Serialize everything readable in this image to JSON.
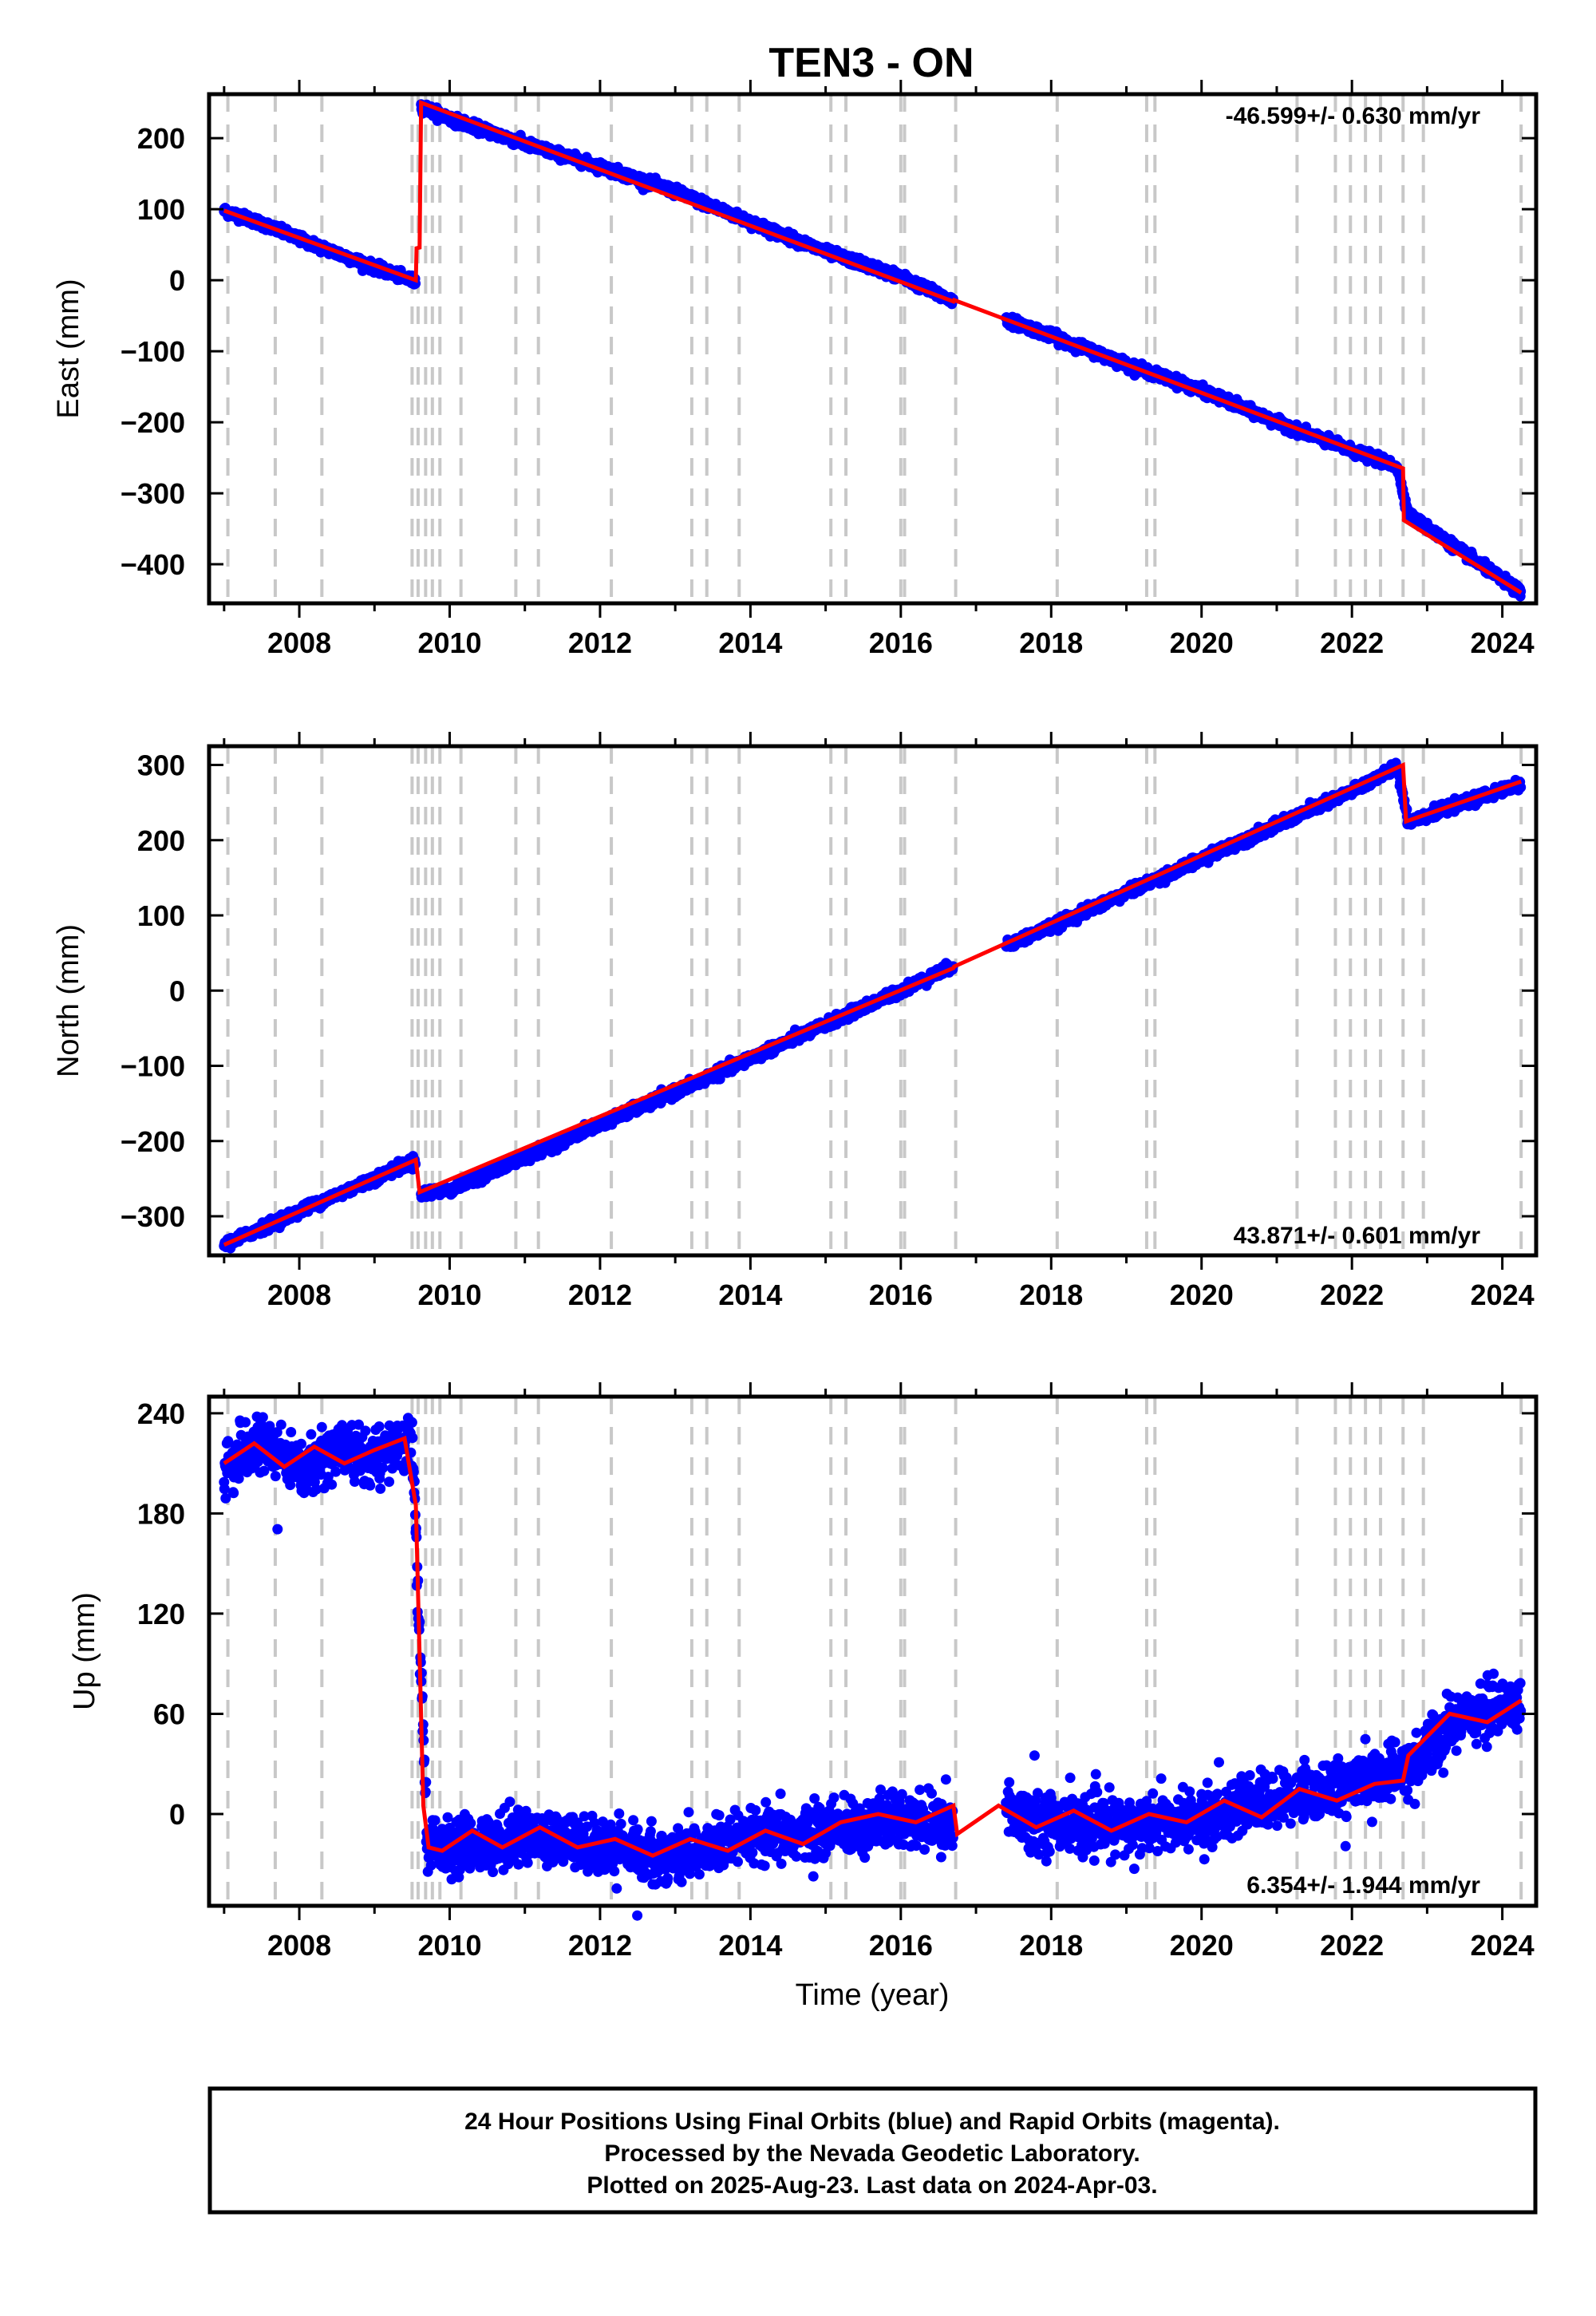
{
  "page": {
    "title": "TEN3 - ON"
  },
  "footer": {
    "line1": "24 Hour Positions Using Final Orbits (blue) and Rapid Orbits (magenta).",
    "line2": "Processed by the Nevada Geodetic Laboratory.",
    "line3": "Plotted on 2025-Aug-23. Last data on 2024-Apr-03."
  },
  "colors": {
    "points": "#0000ff",
    "model": "#ff0000",
    "events": "#c8c8c8",
    "frame": "#000000"
  },
  "chart_data": [
    {
      "type": "scatter",
      "ylabel": "East (mm)",
      "xlabel": "",
      "xlim": [
        2006.8,
        2024.45
      ],
      "ylim": [
        -455,
        262
      ],
      "yticks": [
        200,
        100,
        0,
        -100,
        -200,
        -300,
        -400
      ],
      "xticks": [
        2008,
        2010,
        2012,
        2014,
        2016,
        2018,
        2020,
        2022,
        2024
      ],
      "rate_label": "-46.599+/- 0.630 mm/yr",
      "rate_position": "top-right",
      "event_years": [
        2007.05,
        2007.68,
        2008.3,
        2009.5,
        2009.58,
        2009.68,
        2009.77,
        2009.87,
        2010.15,
        2010.88,
        2011.18,
        2012.15,
        2013.22,
        2013.42,
        2013.85,
        2015.07,
        2015.27,
        2016.0,
        2016.05,
        2016.73,
        2018.08,
        2019.27,
        2019.38,
        2021.27,
        2021.78,
        2021.98,
        2022.18,
        2022.38,
        2022.68,
        2022.95,
        2024.25
      ],
      "series": [
        {
          "name": "Final Orbits",
          "kind": "points",
          "x": [
            2007.0,
            2007.5,
            2008.0,
            2008.5,
            2009.0,
            2009.55,
            2009.62,
            2010.0,
            2011.0,
            2012.0,
            2013.0,
            2014.0,
            2015.0,
            2016.0,
            2016.7,
            2017.4,
            2018.0,
            2019.0,
            2020.0,
            2021.0,
            2022.0,
            2022.6,
            2022.75,
            2023.5,
            2024.25
          ],
          "y": [
            98,
            80,
            58,
            38,
            18,
            -2,
            245,
            228,
            192,
            160,
            125,
            82,
            40,
            5,
            -30,
            -55,
            -78,
            -118,
            -155,
            -200,
            -240,
            -262,
            -330,
            -385,
            -440
          ]
        },
        {
          "name": "Model",
          "kind": "line",
          "x": [
            2007.0,
            2009.55,
            2009.56,
            2009.6,
            2009.62,
            2016.7,
            2016.71,
            2022.68,
            2022.69,
            2024.25
          ],
          "y": [
            98,
            0,
            45,
            46,
            250,
            -30,
            -28,
            -265,
            -338,
            -440
          ]
        }
      ]
    },
    {
      "type": "scatter",
      "ylabel": "North (mm)",
      "xlabel": "",
      "xlim": [
        2006.8,
        2024.45
      ],
      "ylim": [
        -352,
        325
      ],
      "yticks": [
        300,
        200,
        100,
        0,
        -100,
        -200,
        -300
      ],
      "xticks": [
        2008,
        2010,
        2012,
        2014,
        2016,
        2018,
        2020,
        2022,
        2024
      ],
      "rate_label": "43.871+/- 0.601 mm/yr",
      "rate_position": "bottom-right",
      "event_years": [
        2007.05,
        2007.68,
        2008.3,
        2009.5,
        2009.58,
        2009.68,
        2009.77,
        2009.87,
        2010.15,
        2010.88,
        2011.18,
        2012.15,
        2013.22,
        2013.42,
        2013.85,
        2015.07,
        2015.27,
        2016.0,
        2016.05,
        2016.73,
        2018.08,
        2019.27,
        2019.38,
        2021.27,
        2021.78,
        2021.98,
        2022.18,
        2022.38,
        2022.68,
        2022.95,
        2024.25
      ],
      "series": [
        {
          "name": "Final Orbits",
          "kind": "points",
          "x": [
            2007.0,
            2008.0,
            2009.0,
            2009.55,
            2009.62,
            2010.0,
            2011.0,
            2012.0,
            2013.0,
            2014.0,
            2015.0,
            2016.0,
            2016.7,
            2017.4,
            2018.0,
            2019.0,
            2020.0,
            2021.0,
            2022.0,
            2022.6,
            2022.75,
            2023.5,
            2024.25
          ],
          "y": [
            -338,
            -293,
            -250,
            -225,
            -270,
            -265,
            -222,
            -177,
            -135,
            -90,
            -45,
            0,
            33,
            60,
            85,
            130,
            175,
            220,
            265,
            298,
            225,
            250,
            275
          ]
        },
        {
          "name": "Model",
          "kind": "line",
          "x": [
            2007.0,
            2009.55,
            2009.6,
            2016.7,
            2016.71,
            2022.68,
            2022.72,
            2024.25
          ],
          "y": [
            -338,
            -225,
            -268,
            30,
            32,
            300,
            225,
            278
          ]
        }
      ]
    },
    {
      "type": "scatter",
      "ylabel": "Up (mm)",
      "xlabel": "Time (year)",
      "xlim": [
        2006.8,
        2024.45
      ],
      "ylim": [
        -55,
        250
      ],
      "yticks": [
        240,
        180,
        120,
        60,
        0
      ],
      "xticks": [
        2008,
        2010,
        2012,
        2014,
        2016,
        2018,
        2020,
        2022,
        2024
      ],
      "rate_label": "6.354+/- 1.944 mm/yr",
      "rate_position": "bottom-right",
      "event_years": [
        2007.05,
        2007.68,
        2008.3,
        2009.5,
        2009.58,
        2009.68,
        2009.77,
        2009.87,
        2010.15,
        2010.88,
        2011.18,
        2012.15,
        2013.22,
        2013.42,
        2013.85,
        2015.07,
        2015.27,
        2016.0,
        2016.05,
        2016.73,
        2018.08,
        2019.27,
        2019.38,
        2021.27,
        2021.78,
        2021.98,
        2022.18,
        2022.38,
        2022.68,
        2022.95,
        2024.25
      ],
      "series": [
        {
          "name": "Final Orbits",
          "kind": "points",
          "x": [
            2007.0,
            2007.5,
            2008.0,
            2008.5,
            2009.0,
            2009.5,
            2009.7,
            2010.0,
            2011.0,
            2012.0,
            2013.0,
            2014.0,
            2015.0,
            2016.0,
            2016.7,
            2017.4,
            2018.0,
            2019.0,
            2020.0,
            2021.0,
            2022.0,
            2022.7,
            2023.5,
            2024.25
          ],
          "y": [
            208,
            222,
            205,
            220,
            212,
            225,
            -15,
            -22,
            -12,
            -20,
            -25,
            -15,
            -10,
            -5,
            -8,
            2,
            -5,
            -8,
            -2,
            8,
            18,
            25,
            60,
            65
          ]
        },
        {
          "name": "Model",
          "kind": "line",
          "x": [
            2007.0,
            2007.4,
            2007.8,
            2008.2,
            2008.6,
            2009.0,
            2009.4,
            2009.55,
            2009.65,
            2009.72,
            2009.9,
            2010.3,
            2010.7,
            2011.2,
            2011.7,
            2012.2,
            2012.7,
            2013.2,
            2013.7,
            2014.2,
            2014.7,
            2015.2,
            2015.7,
            2016.2,
            2016.7,
            2016.75,
            2017.3,
            2017.8,
            2018.3,
            2018.8,
            2019.3,
            2019.8,
            2020.3,
            2020.8,
            2021.3,
            2021.8,
            2022.3,
            2022.68,
            2022.75,
            2023.3,
            2023.8,
            2024.25
          ],
          "y": [
            210,
            222,
            208,
            220,
            210,
            218,
            225,
            185,
            5,
            -20,
            -22,
            -10,
            -20,
            -8,
            -20,
            -15,
            -25,
            -15,
            -22,
            -10,
            -18,
            -5,
            0,
            -5,
            5,
            -12,
            5,
            -8,
            2,
            -10,
            0,
            -5,
            8,
            -2,
            15,
            8,
            18,
            20,
            35,
            60,
            55,
            68
          ]
        }
      ]
    }
  ]
}
